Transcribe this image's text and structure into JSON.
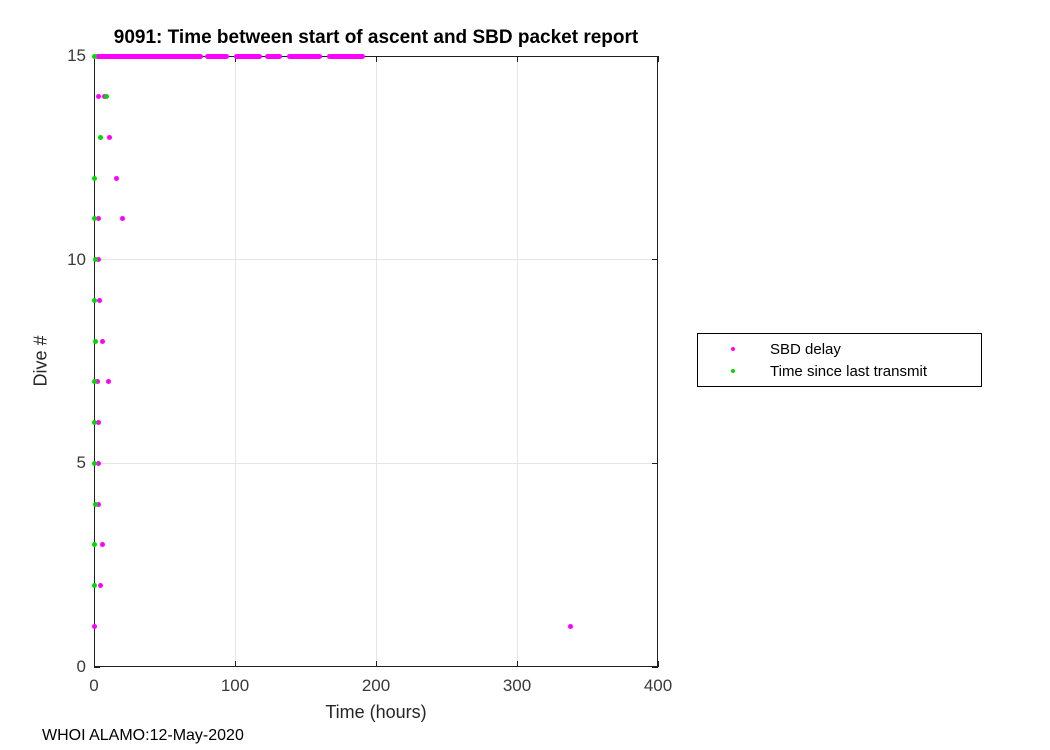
{
  "page": {
    "background": "#ffffff"
  },
  "footer": {
    "text": "WHOI ALAMO:12-May-2020"
  },
  "chart_data": {
    "type": "scatter",
    "title": "9091: Time between start of ascent and SBD packet report",
    "xlabel": "Time (hours)",
    "ylabel": "Dive #",
    "xlim": [
      0,
      400
    ],
    "ylim": [
      0,
      15
    ],
    "xticks": [
      0,
      100,
      200,
      300,
      400
    ],
    "yticks": [
      0,
      5,
      10,
      15
    ],
    "grid": true,
    "colors": {
      "magenta": "#ff00ff",
      "green": "#00d800",
      "grid": "#e6e6e6",
      "axis": "#1f1f1f"
    },
    "legend": {
      "position": "outside-right",
      "entries": [
        {
          "label": "SBD delay",
          "color": "#ff00ff"
        },
        {
          "label": "Time since last transmit",
          "color": "#00d800"
        }
      ]
    },
    "series": [
      {
        "name": "SBD delay",
        "color_key": "magenta",
        "points": [
          {
            "dive": 1,
            "t": 0
          },
          {
            "dive": 1,
            "t": 338
          },
          {
            "dive": 2,
            "t": 4.7
          },
          {
            "dive": 3,
            "t": 5.9
          },
          {
            "dive": 4,
            "t": 3.5
          },
          {
            "dive": 5,
            "t": 3.5
          },
          {
            "dive": 6,
            "t": 3.0
          },
          {
            "dive": 7,
            "t": 2.6
          },
          {
            "dive": 7,
            "t": 10.1
          },
          {
            "dive": 8,
            "t": 5.9
          },
          {
            "dive": 9,
            "t": 3.8
          },
          {
            "dive": 10,
            "t": 3.5
          },
          {
            "dive": 11,
            "t": 3.0
          },
          {
            "dive": 11,
            "t": 20
          },
          {
            "dive": 12,
            "t": 16.1
          },
          {
            "dive": 13,
            "t": 10.9
          },
          {
            "dive": 14,
            "t": 3.0
          },
          {
            "dive": 14,
            "t": 7.1
          }
        ]
      },
      {
        "name": "Time since last transmit",
        "color_key": "green",
        "points": [
          {
            "dive": 2,
            "t": 0.2
          },
          {
            "dive": 3,
            "t": 0.2
          },
          {
            "dive": 4,
            "t": 0.7
          },
          {
            "dive": 5,
            "t": 0.1
          },
          {
            "dive": 6,
            "t": 0.2
          },
          {
            "dive": 7,
            "t": 0
          },
          {
            "dive": 8,
            "t": 0.7
          },
          {
            "dive": 9,
            "t": 0.2
          },
          {
            "dive": 10,
            "t": 0.7
          },
          {
            "dive": 11,
            "t": 0
          },
          {
            "dive": 12,
            "t": 0
          },
          {
            "dive": 13,
            "t": 4.3
          },
          {
            "dive": 14,
            "t": 9.0
          },
          {
            "dive": 15,
            "t": 0
          }
        ]
      }
    ],
    "dive15_sbd_band_segments_hours": [
      [
        1,
        77
      ],
      [
        79,
        96
      ],
      [
        99,
        119
      ],
      [
        121,
        133
      ],
      [
        137,
        162
      ],
      [
        165,
        192
      ]
    ]
  }
}
